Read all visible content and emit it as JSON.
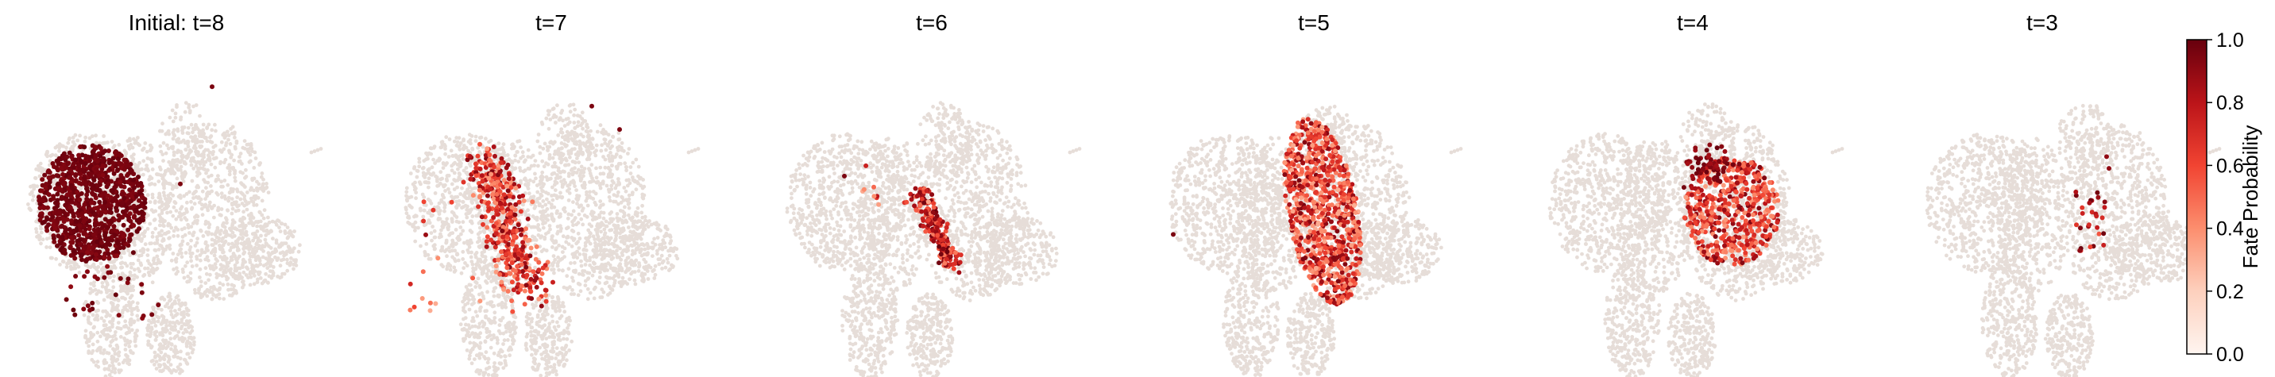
{
  "chart_data": {
    "type": "scatter",
    "panel_titles": [
      "Initial: t=8",
      "t=7",
      "t=6",
      "t=5",
      "t=4",
      "t=3"
    ],
    "background_color": "#e6ddd8",
    "colormap": {
      "name": "Reds",
      "stops": [
        "#fff5f0",
        "#fdd0bd",
        "#fc8e6e",
        "#f14432",
        "#bb1419",
        "#67000d"
      ],
      "label": "Fate Probability",
      "ticks": [
        "0.0",
        "0.2",
        "0.4",
        "0.6",
        "0.8",
        "1.0"
      ],
      "range": [
        0,
        1
      ]
    },
    "panels": [
      {
        "title": "Initial: t=8",
        "highlight_region": "upper-left lobe",
        "typical_value": 1.0
      },
      {
        "title": "t=7",
        "highlight_region": "left-center ridge",
        "typical_value": 0.6
      },
      {
        "title": "t=6",
        "highlight_region": "thin central streak",
        "typical_value": 0.7
      },
      {
        "title": "t=5",
        "highlight_region": "central band",
        "typical_value": 0.5
      },
      {
        "title": "t=4",
        "highlight_region": "right-center lobe",
        "typical_value": 0.75
      },
      {
        "title": "t=3",
        "highlight_region": "right sparse cluster",
        "typical_value": 0.85
      }
    ]
  }
}
